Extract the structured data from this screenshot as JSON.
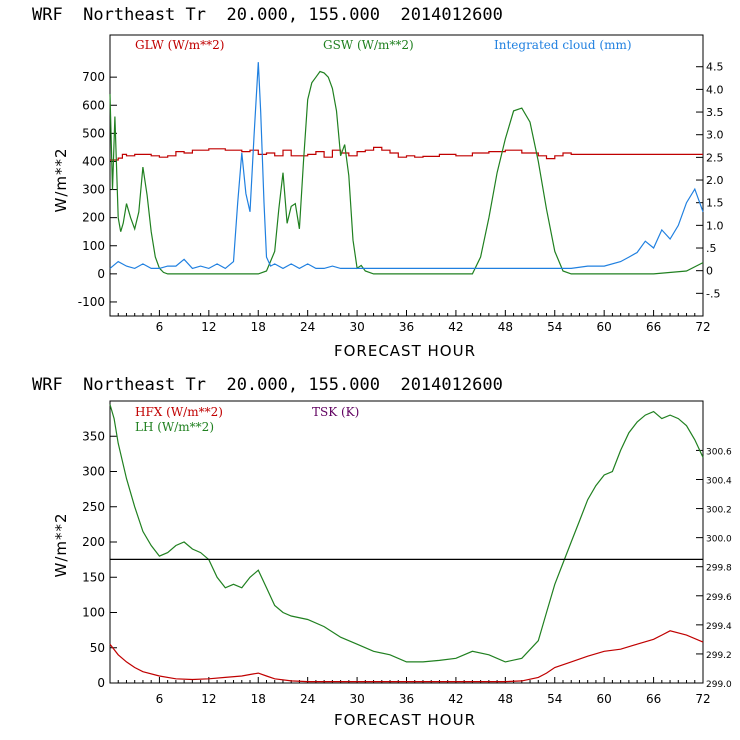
{
  "chart_data": [
    {
      "type": "line",
      "title": "WRF  Northeast Tr  20.000, 155.000  2014012600",
      "xlabel": "FORECAST HOUR",
      "ylabel": "W/m**2",
      "xlim": [
        0,
        72
      ],
      "ylim": [
        -150,
        850
      ],
      "y2lim": [
        -1.0,
        5.2
      ],
      "xticks": [
        "6",
        "12",
        "18",
        "24",
        "30",
        "36",
        "42",
        "48",
        "54",
        "60",
        "66",
        "72"
      ],
      "yticks": [
        "-100",
        "0",
        "100",
        "200",
        "300",
        "400",
        "500",
        "600",
        "700"
      ],
      "y2ticks": [
        "-.5",
        "0",
        ".5",
        "1.0",
        "1.5",
        "2.0",
        "2.5",
        "3.0",
        "3.5",
        "4.0",
        "4.5"
      ],
      "grid": false,
      "legend": "top",
      "series": [
        {
          "name": "GLW (W/m**2)",
          "color": "#c00000",
          "axis": "left",
          "step": true,
          "x": [
            0,
            1,
            1.5,
            2,
            3,
            5,
            6,
            7,
            8,
            9,
            10,
            12,
            14,
            16,
            17,
            18,
            19,
            20,
            21,
            22,
            24,
            25,
            26,
            27,
            28,
            29,
            30,
            31,
            32,
            33,
            34,
            35,
            36,
            37,
            38,
            40,
            42,
            44,
            46,
            48,
            50,
            52,
            53,
            54,
            55,
            56,
            60,
            66,
            72
          ],
          "y": [
            405,
            412,
            425,
            420,
            425,
            420,
            415,
            420,
            435,
            430,
            440,
            445,
            440,
            435,
            440,
            425,
            430,
            420,
            440,
            420,
            425,
            435,
            415,
            440,
            430,
            420,
            435,
            440,
            450,
            440,
            430,
            415,
            420,
            415,
            418,
            425,
            420,
            430,
            435,
            440,
            430,
            420,
            410,
            420,
            430,
            425,
            425,
            425,
            425
          ]
        },
        {
          "name": "GSW (W/m**2)",
          "color": "#208020",
          "axis": "left",
          "x": [
            0,
            0.3,
            0.6,
            1,
            1.3,
            1.6,
            2,
            2.5,
            3,
            3.5,
            4,
            4.5,
            5,
            5.5,
            6,
            6.5,
            7,
            8,
            18,
            19,
            20,
            20.5,
            21,
            21.5,
            22,
            22.5,
            23,
            23.5,
            24,
            24.5,
            25,
            25.5,
            26,
            26.5,
            27,
            27.5,
            28,
            28.5,
            29,
            29.5,
            30,
            30.5,
            31,
            32,
            44,
            45,
            46,
            47,
            48,
            49,
            50,
            51,
            52,
            53,
            54,
            55,
            56,
            66,
            70,
            72
          ],
          "y": [
            640,
            300,
            560,
            200,
            150,
            180,
            250,
            200,
            160,
            220,
            380,
            280,
            150,
            60,
            20,
            5,
            0,
            0,
            0,
            10,
            80,
            230,
            360,
            180,
            240,
            250,
            160,
            400,
            620,
            680,
            700,
            720,
            715,
            700,
            660,
            580,
            420,
            460,
            350,
            120,
            20,
            30,
            10,
            0,
            0,
            60,
            200,
            360,
            480,
            580,
            590,
            540,
            400,
            230,
            80,
            10,
            0,
            0,
            10,
            40
          ]
        },
        {
          "name": "Integrated cloud (mm)",
          "color": "#2080e0",
          "axis": "right",
          "x": [
            0,
            1,
            2,
            3,
            4,
            5,
            6,
            7,
            8,
            9,
            10,
            11,
            12,
            13,
            14,
            15,
            15.5,
            16,
            16.5,
            17,
            17.5,
            18,
            18.3,
            18.7,
            19,
            19.5,
            20,
            21,
            22,
            23,
            24,
            25,
            26,
            27,
            28,
            30,
            32,
            34,
            36,
            38,
            40,
            44,
            48,
            52,
            54,
            56,
            58,
            60,
            62,
            63,
            64,
            65,
            66,
            67,
            68,
            69,
            70,
            71,
            72
          ],
          "y": [
            0.05,
            0.2,
            0.1,
            0.05,
            0.15,
            0.05,
            0.05,
            0.1,
            0.1,
            0.25,
            0.05,
            0.1,
            0.05,
            0.15,
            0.05,
            0.2,
            1.5,
            2.6,
            1.7,
            1.3,
            3.0,
            4.6,
            3.5,
            1.5,
            0.3,
            0.1,
            0.15,
            0.05,
            0.15,
            0.05,
            0.15,
            0.05,
            0.05,
            0.1,
            0.05,
            0.05,
            0.05,
            0.05,
            0.05,
            0.05,
            0.05,
            0.05,
            0.05,
            0.05,
            0.05,
            0.05,
            0.1,
            0.1,
            0.2,
            0.3,
            0.4,
            0.65,
            0.5,
            0.9,
            0.7,
            1.0,
            1.5,
            1.8,
            1.3
          ]
        }
      ]
    },
    {
      "type": "line",
      "title": "WRF  Northeast Tr  20.000, 155.000  2014012600",
      "xlabel": "FORECAST HOUR",
      "ylabel": "W/m**2",
      "xlim": [
        0,
        72
      ],
      "ylim": [
        0,
        400
      ],
      "y2lim": [
        299.0,
        300.94
      ],
      "xticks": [
        "6",
        "12",
        "18",
        "24",
        "30",
        "36",
        "42",
        "48",
        "54",
        "60",
        "66",
        "72"
      ],
      "yticks": [
        "0",
        "50",
        "100",
        "150",
        "200",
        "250",
        "300",
        "350"
      ],
      "y2ticks": [
        "299.0",
        "299.2",
        "299.4",
        "299.6",
        "299.8",
        "300.0",
        "300.2",
        "300.4",
        "300.6"
      ],
      "grid": false,
      "legend": "top-left",
      "series": [
        {
          "name": "HFX (W/m**2)",
          "color": "#c00000",
          "axis": "left",
          "x": [
            0,
            1,
            2,
            3,
            4,
            6,
            8,
            10,
            12,
            14,
            16,
            17,
            18,
            19,
            20,
            22,
            24,
            26,
            30,
            36,
            42,
            48,
            50,
            52,
            53,
            54,
            56,
            58,
            60,
            62,
            64,
            66,
            67,
            68,
            70,
            72
          ],
          "y": [
            55,
            40,
            30,
            22,
            16,
            10,
            6,
            5,
            6,
            8,
            10,
            12,
            14,
            10,
            6,
            3,
            2,
            2,
            2,
            2,
            2,
            2,
            3,
            8,
            14,
            22,
            30,
            38,
            45,
            48,
            55,
            62,
            68,
            74,
            68,
            58
          ]
        },
        {
          "name": "LH (W/m**2)",
          "color": "#208020",
          "axis": "left",
          "x": [
            0,
            0.5,
            1,
            2,
            3,
            4,
            5,
            6,
            7,
            8,
            9,
            10,
            11,
            12,
            13,
            14,
            15,
            16,
            17,
            18,
            19,
            20,
            21,
            22,
            24,
            26,
            28,
            30,
            32,
            34,
            36,
            38,
            40,
            42,
            44,
            46,
            48,
            50,
            52,
            53,
            54,
            55,
            56,
            57,
            58,
            59,
            60,
            61,
            62,
            63,
            64,
            65,
            66,
            67,
            68,
            69,
            70,
            71,
            72
          ],
          "y": [
            395,
            375,
            340,
            290,
            250,
            215,
            195,
            180,
            185,
            195,
            200,
            190,
            185,
            175,
            150,
            135,
            140,
            135,
            150,
            160,
            135,
            110,
            100,
            95,
            90,
            80,
            65,
            55,
            45,
            40,
            30,
            30,
            32,
            35,
            45,
            40,
            30,
            35,
            60,
            100,
            140,
            170,
            200,
            230,
            260,
            280,
            295,
            300,
            330,
            355,
            370,
            380,
            385,
            375,
            380,
            375,
            365,
            345,
            320
          ]
        },
        {
          "name": "TSK (K)",
          "color": "#000000",
          "axis": "right",
          "x": [
            0,
            72
          ],
          "y": [
            299.85,
            299.85
          ]
        }
      ]
    }
  ]
}
